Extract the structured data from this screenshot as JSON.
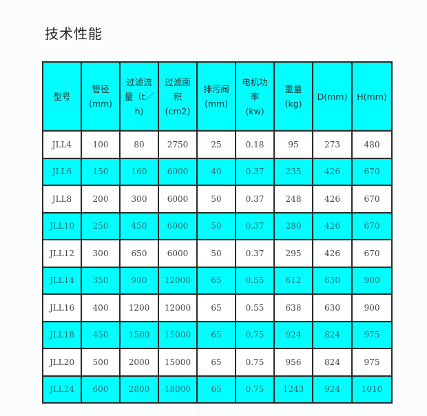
{
  "title": "技术性能",
  "colors": {
    "highlight": "#00ffff",
    "border": "#2a2a2a"
  },
  "table": {
    "headers": [
      "型号",
      "管径\n(mm)",
      "过滤流\n量（t／\nh)",
      "过滤面\n积\n(cm2)",
      "排污阀\n(mm)",
      "电机功\n率\n(kw)",
      "重量\n(kg)",
      "D(mm)",
      "H(mm)"
    ],
    "rows": [
      [
        "JLL4",
        "100",
        "80",
        "2750",
        "25",
        "0.18",
        "95",
        "273",
        "480"
      ],
      [
        "JLL6",
        "150",
        "160",
        "6000",
        "40",
        "0.37",
        "235",
        "426",
        "670"
      ],
      [
        "JLL8",
        "200",
        "300",
        "6000",
        "50",
        "0.37",
        "248",
        "426",
        "670"
      ],
      [
        "JLL10",
        "250",
        "450",
        "6000",
        "50",
        "0.37",
        "280",
        "426",
        "670"
      ],
      [
        "JLL12",
        "300",
        "650",
        "6000",
        "50",
        "0.37",
        "295",
        "426",
        "670"
      ],
      [
        "JLL14",
        "350",
        "900",
        "12000",
        "65",
        "0.55",
        "612",
        "630",
        "900"
      ],
      [
        "JLL16",
        "400",
        "1200",
        "12000",
        "65",
        "0.55",
        "638",
        "630",
        "900"
      ],
      [
        "JLL18",
        "450",
        "1500",
        "15000",
        "65",
        "0.75",
        "924",
        "824",
        "975"
      ],
      [
        "JLL20",
        "500",
        "2000",
        "15000",
        "65",
        "0.75",
        "956",
        "824",
        "975"
      ],
      [
        "JLL24",
        "600",
        "2800",
        "18000",
        "65",
        "0.75",
        "1243",
        "924",
        "1010"
      ]
    ]
  }
}
